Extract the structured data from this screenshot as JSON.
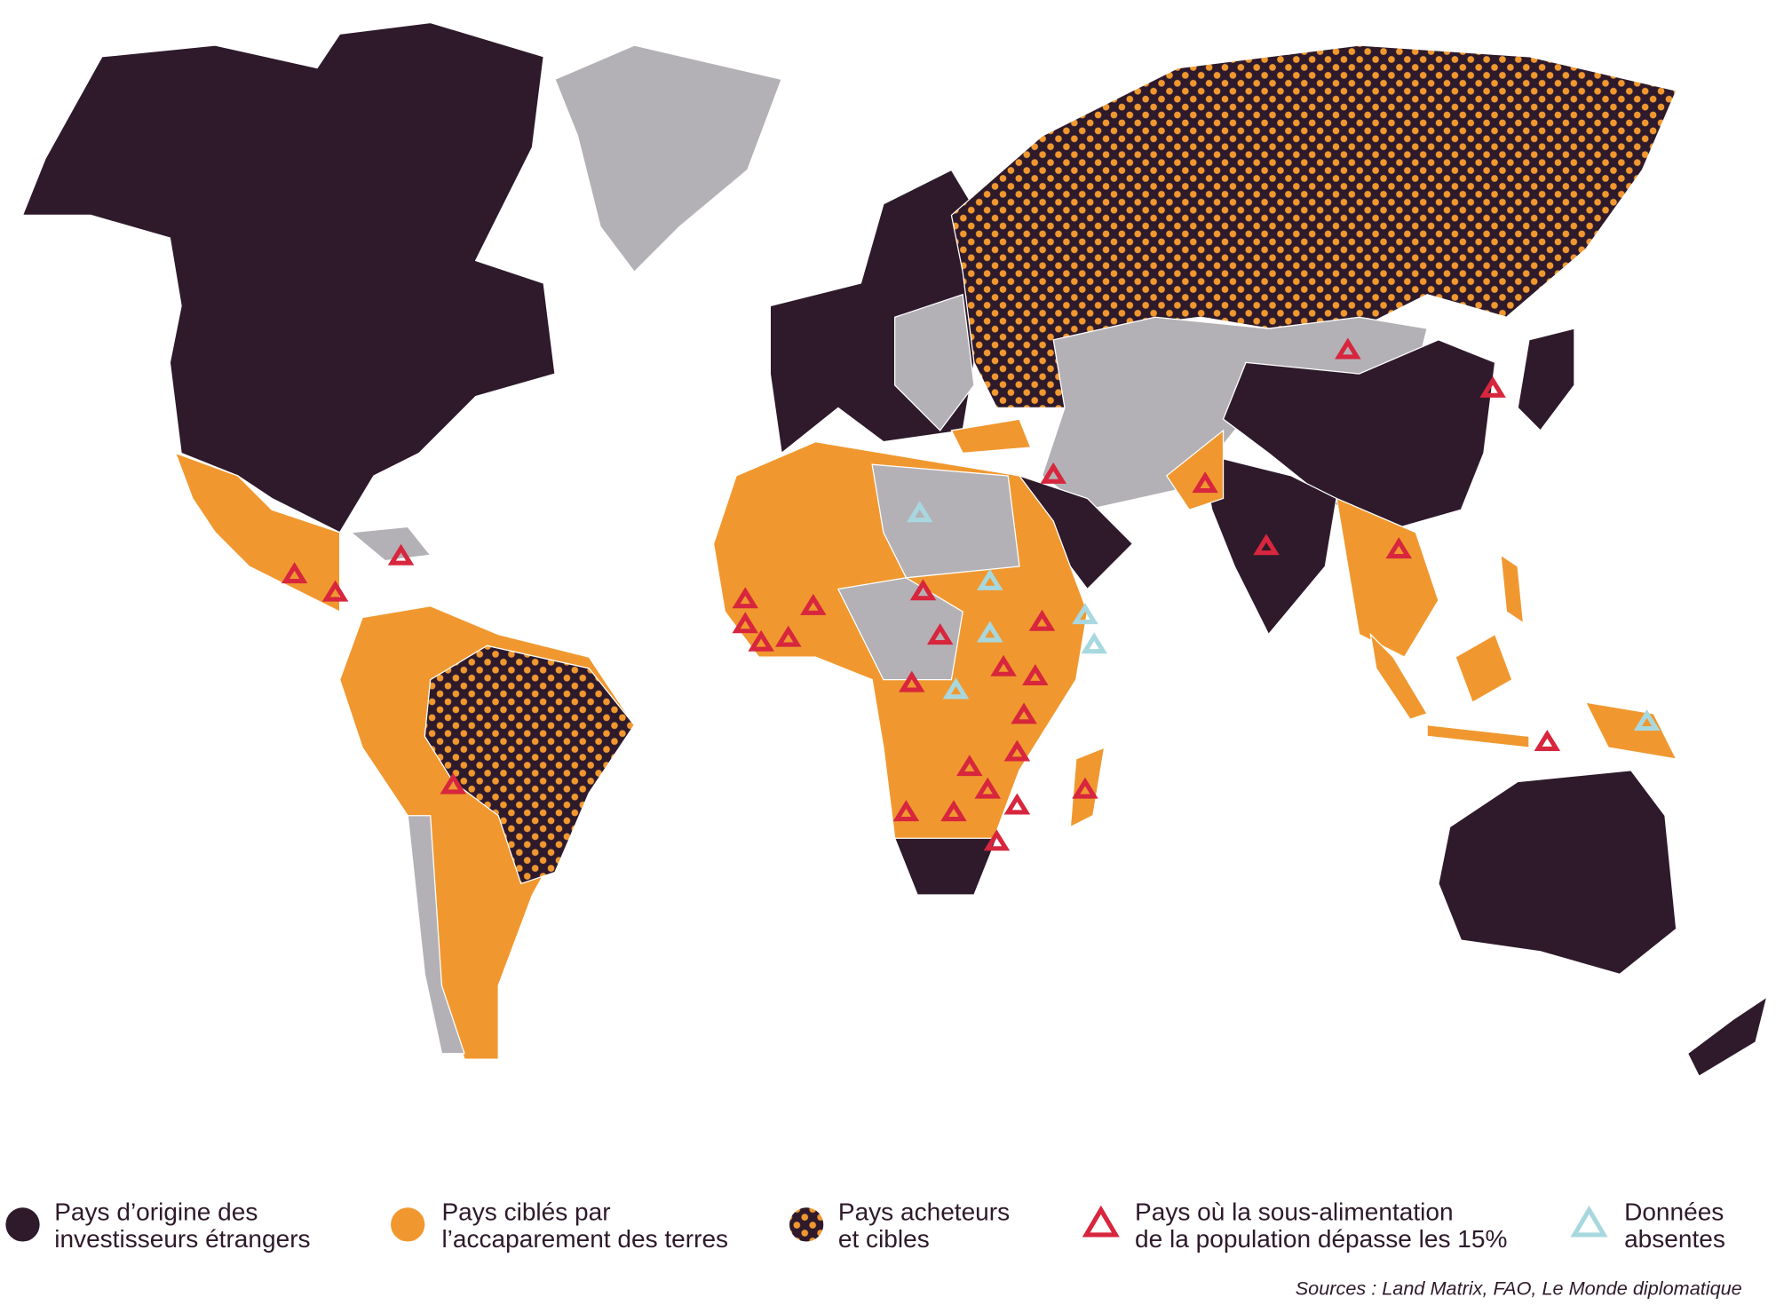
{
  "legend": [
    {
      "lines": [
        "Pays d’origine des",
        "investisseurs étrangers"
      ]
    },
    {
      "lines": [
        "Pays ciblés par",
        "l’accaparement des terres"
      ]
    },
    {
      "lines": [
        "Pays acheteurs",
        "et cibles"
      ]
    },
    {
      "lines": [
        "Pays où la sous-alimentation",
        "de la population dépasse les 15%"
      ]
    },
    {
      "lines": [
        "Données",
        "absentes"
      ]
    }
  ],
  "source": "Sources : Land Matrix, FAO, Le Monde diplomatique"
}
